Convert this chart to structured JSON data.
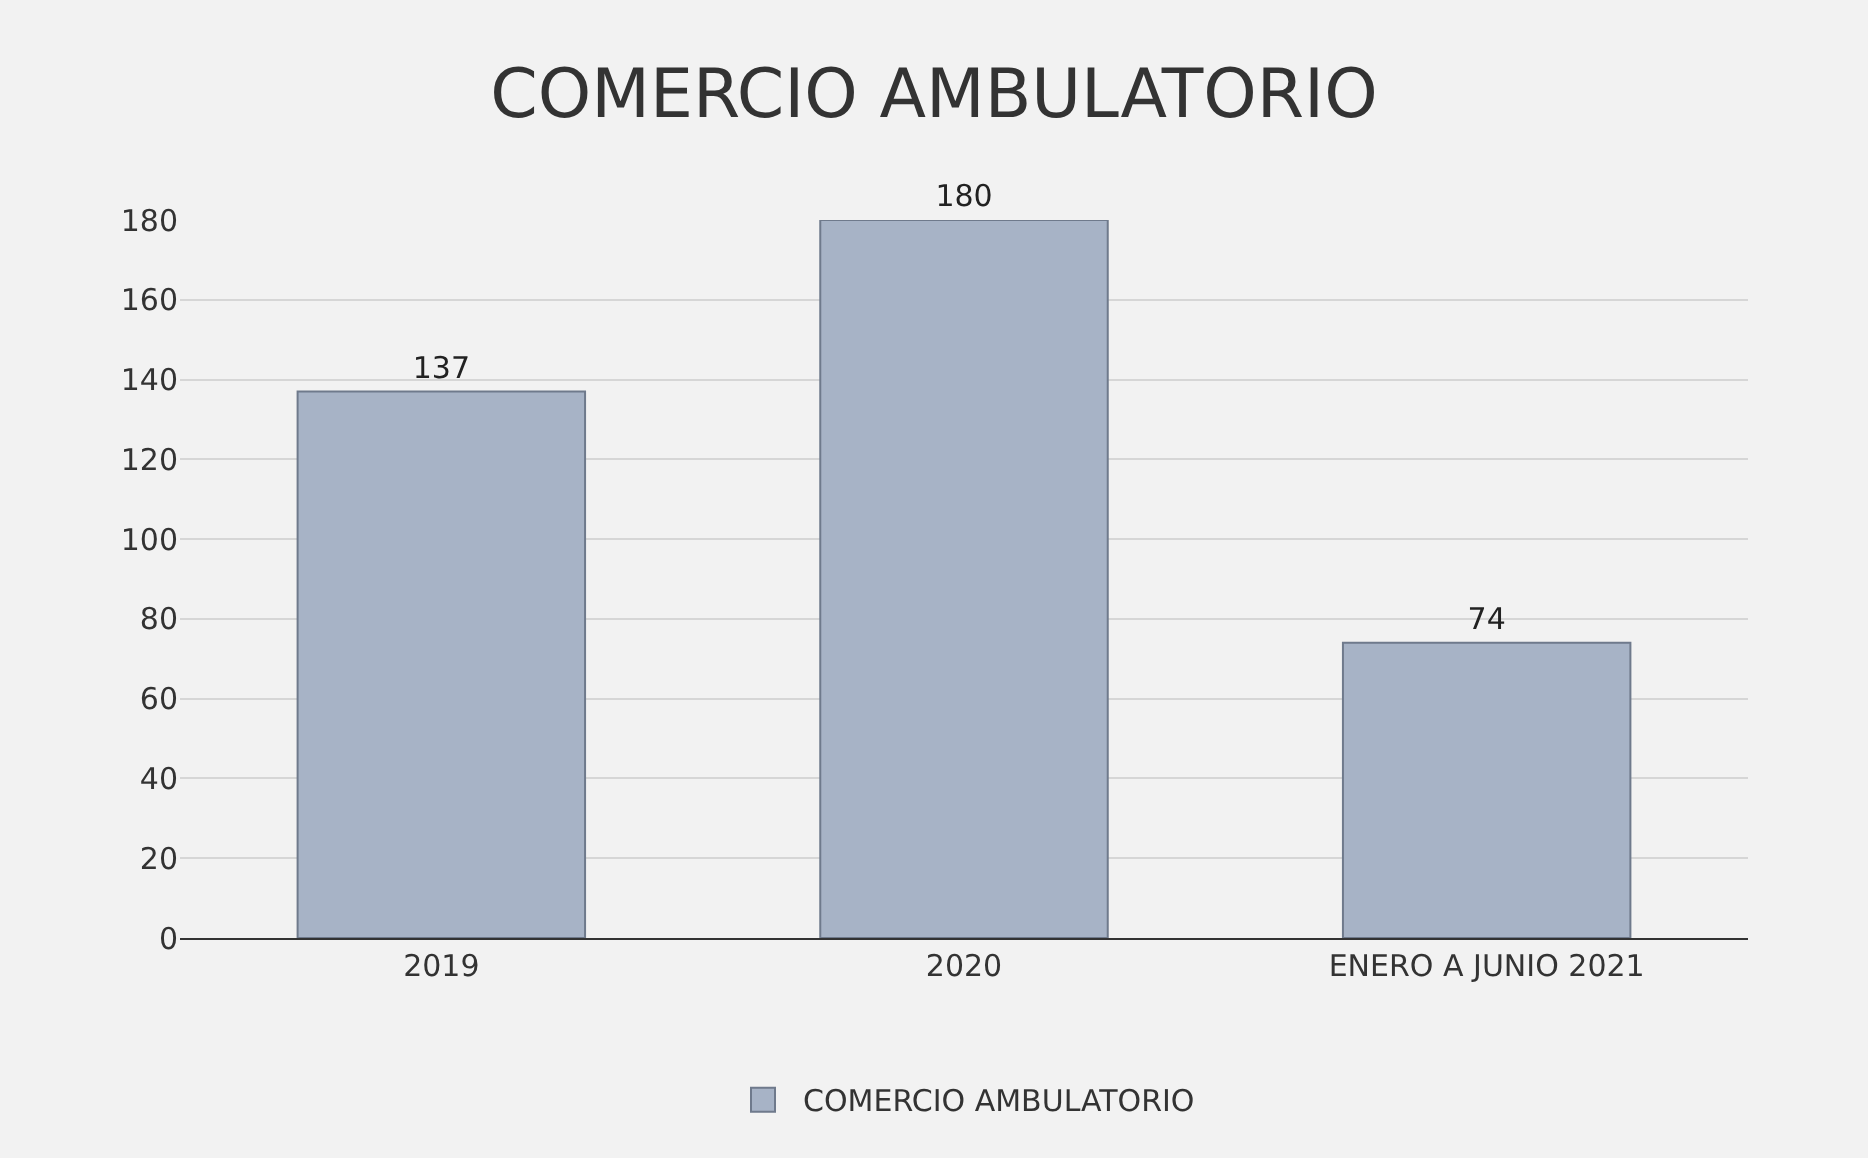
{
  "chart_data": {
    "type": "bar",
    "title": "COMERCIO AMBULATORIO",
    "categories": [
      "2019",
      "2020",
      "ENERO A JUNIO 2021"
    ],
    "series": [
      {
        "name": "COMERCIO AMBULATORIO",
        "color": "#a7b3c6",
        "values": [
          137,
          180,
          74
        ]
      }
    ],
    "ylim": [
      0,
      180
    ],
    "yticks": [
      0,
      20,
      40,
      60,
      80,
      100,
      120,
      140,
      160,
      180
    ],
    "grid": "y",
    "legend": "bottom",
    "data_labels": true
  }
}
